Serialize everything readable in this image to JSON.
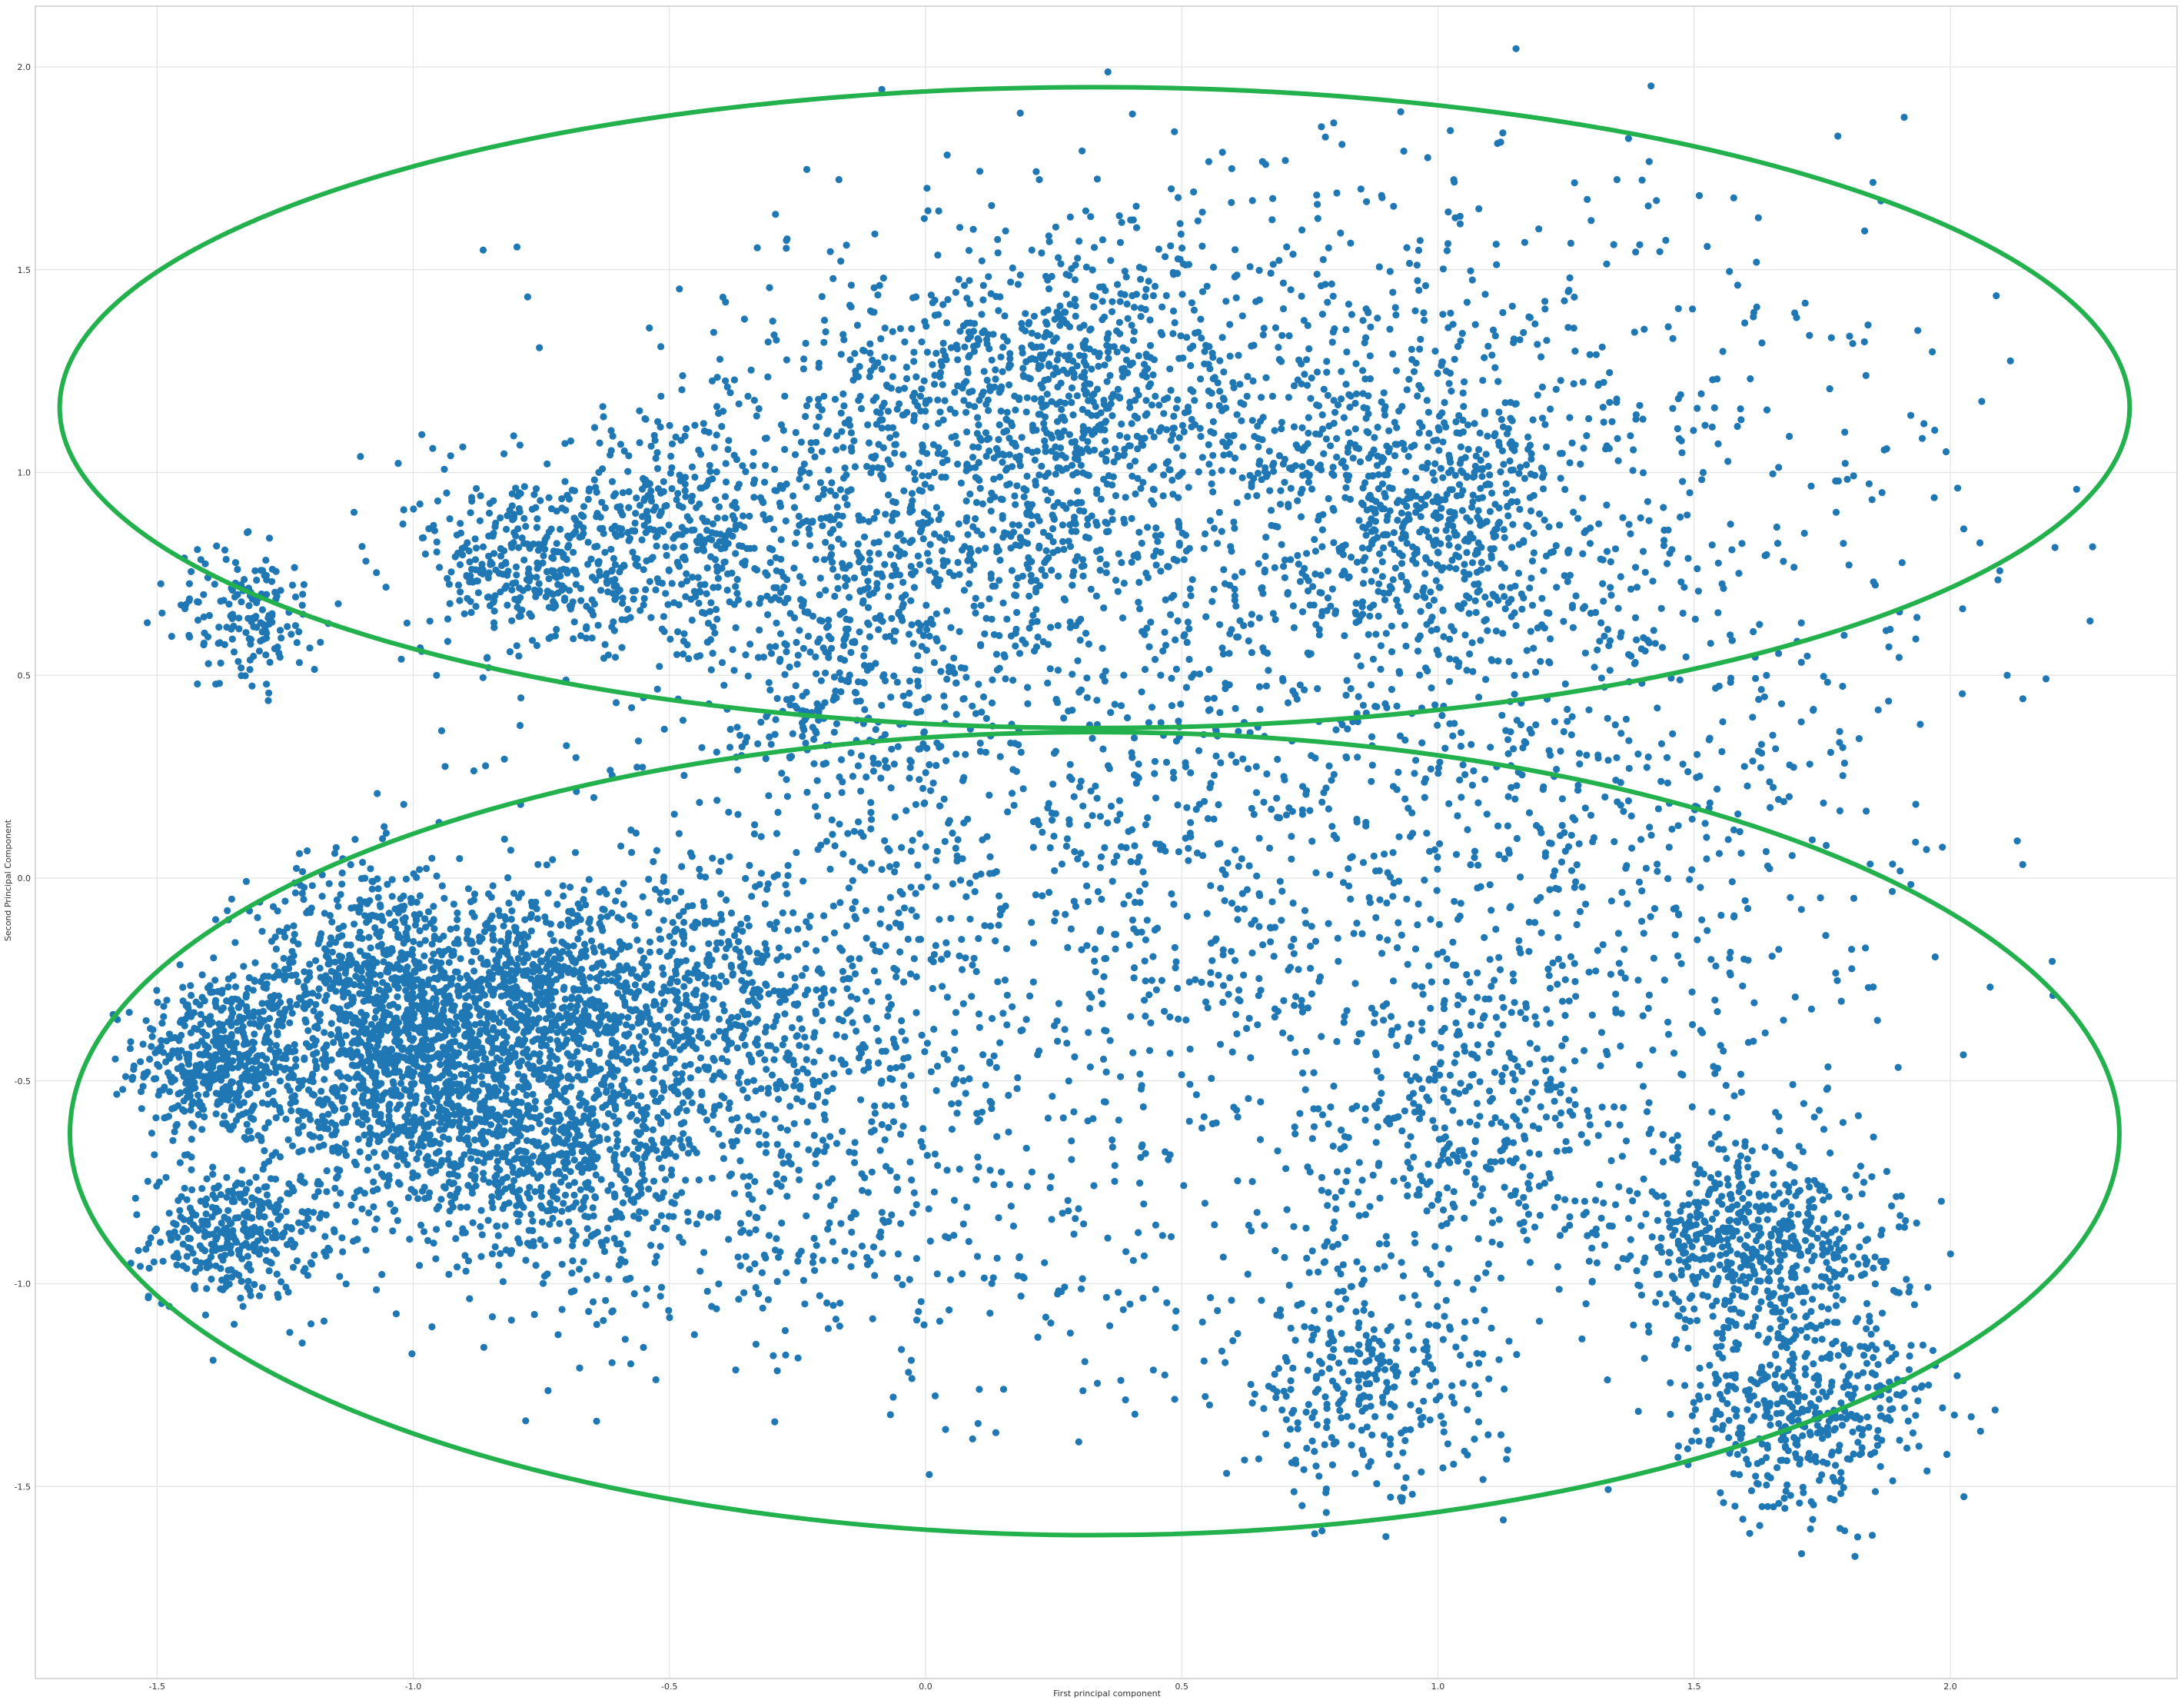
{
  "chart_data": {
    "type": "scatter",
    "title": "",
    "xlabel": "First principal component",
    "ylabel": "Second Principal Component",
    "xlim": [
      -1.75,
      2.45
    ],
    "ylim": [
      -1.97,
      2.15
    ],
    "x_ticks": [
      -1.5,
      -1.0,
      -0.5,
      0.0,
      0.5,
      1.0,
      1.5,
      2.0
    ],
    "x_tick_labels": [
      "-1.5",
      "-1.0",
      "-0.5",
      "0.0",
      "0.5",
      "1.0",
      "1.5",
      "2.0"
    ],
    "y_ticks": [
      -1.5,
      -1.0,
      -0.5,
      0.0,
      0.5,
      1.0,
      1.5,
      2.0
    ],
    "y_tick_labels": [
      "-1.5",
      "-1.0",
      "-0.5",
      "0.0",
      "0.5",
      "1.0",
      "1.5",
      "2.0"
    ],
    "grid": true,
    "legend": "none",
    "point_color": "#1f77b4",
    "ellipse_color": "#22b14c",
    "point_count_approx": 12000,
    "point_clusters": [
      {
        "cx": -1.38,
        "cy": -0.45,
        "sx": 0.08,
        "sy": 0.1,
        "weight": 0.045
      },
      {
        "cx": -1.35,
        "cy": -0.88,
        "sx": 0.08,
        "sy": 0.08,
        "weight": 0.03
      },
      {
        "cx": -1.08,
        "cy": -0.25,
        "sx": 0.12,
        "sy": 0.15,
        "weight": 0.06
      },
      {
        "cx": -1.0,
        "cy": -0.52,
        "sx": 0.14,
        "sy": 0.15,
        "weight": 0.075
      },
      {
        "cx": -0.78,
        "cy": -0.3,
        "sx": 0.14,
        "sy": 0.13,
        "weight": 0.06
      },
      {
        "cx": -0.75,
        "cy": -0.68,
        "sx": 0.16,
        "sy": 0.13,
        "weight": 0.05
      },
      {
        "cx": -0.45,
        "cy": -0.35,
        "sx": 0.2,
        "sy": 0.17,
        "weight": 0.07
      },
      {
        "cx": -0.5,
        "cy": 0.85,
        "sx": 0.12,
        "sy": 0.15,
        "weight": 0.035
      },
      {
        "cx": -0.78,
        "cy": 0.78,
        "sx": 0.1,
        "sy": 0.12,
        "weight": 0.03
      },
      {
        "cx": -1.32,
        "cy": 0.65,
        "sx": 0.07,
        "sy": 0.09,
        "weight": 0.015
      },
      {
        "cx": -0.15,
        "cy": 0.6,
        "sx": 0.12,
        "sy": 0.2,
        "weight": 0.03
      },
      {
        "cx": 0.28,
        "cy": 1.2,
        "sx": 0.15,
        "sy": 0.2,
        "weight": 0.04
      },
      {
        "cx": 0.0,
        "cy": 1.0,
        "sx": 0.2,
        "sy": 0.25,
        "weight": 0.04
      },
      {
        "cx": 1.0,
        "cy": 0.9,
        "sx": 0.12,
        "sy": 0.15,
        "weight": 0.03
      },
      {
        "cx": 1.05,
        "cy": -0.6,
        "sx": 0.15,
        "sy": 0.2,
        "weight": 0.03
      },
      {
        "cx": 1.63,
        "cy": -0.9,
        "sx": 0.14,
        "sy": 0.12,
        "weight": 0.055
      },
      {
        "cx": 1.72,
        "cy": -1.32,
        "sx": 0.12,
        "sy": 0.12,
        "weight": 0.04
      },
      {
        "cx": 0.85,
        "cy": -1.25,
        "sx": 0.14,
        "sy": 0.15,
        "weight": 0.03
      },
      {
        "cx": 0.3,
        "cy": 0.0,
        "sx": 0.5,
        "sy": 0.45,
        "weight": 0.11
      },
      {
        "cx": 0.7,
        "cy": 1.05,
        "sx": 0.5,
        "sy": 0.35,
        "weight": 0.12
      },
      {
        "cx": 1.3,
        "cy": 0.2,
        "sx": 0.35,
        "sy": 0.55,
        "weight": 0.07
      },
      {
        "cx": -0.3,
        "cy": -0.85,
        "sx": 0.4,
        "sy": 0.2,
        "weight": 0.04
      }
    ],
    "ellipses": [
      {
        "cx": 0.33,
        "cy": 1.16,
        "rx": 2.02,
        "ry": 0.79
      },
      {
        "cx": 0.33,
        "cy": -0.63,
        "rx": 2.0,
        "ry": 0.99
      }
    ]
  }
}
